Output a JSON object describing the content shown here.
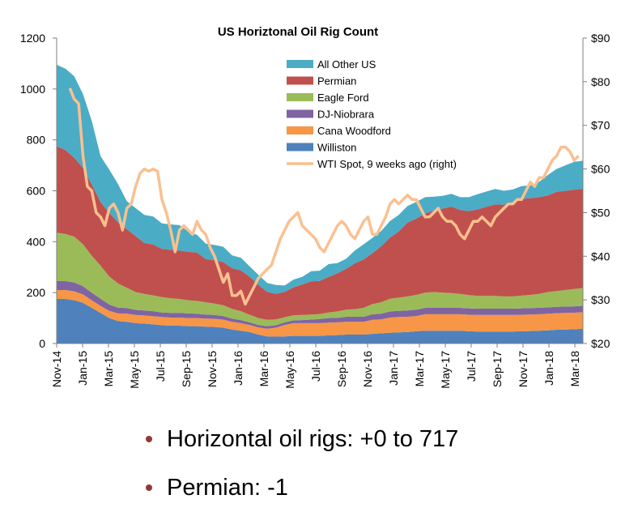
{
  "chart_data": {
    "type": "area",
    "title": "US Horiztonal Oil Rig Count",
    "x_labels": [
      "Nov-14",
      "Jan-15",
      "Mar-15",
      "May-15",
      "Jul-15",
      "Sep-15",
      "Nov-15",
      "Jan-16",
      "Mar-16",
      "May-16",
      "Jul-16",
      "Sep-16",
      "Nov-16",
      "Jan-17",
      "Mar-17",
      "May-17",
      "Jul-17",
      "Sep-17",
      "Nov-17",
      "Jan-18",
      "Mar-18"
    ],
    "y_left": {
      "min": 0,
      "max": 1200,
      "ticks": [
        0,
        200,
        400,
        600,
        800,
        1000,
        1200
      ]
    },
    "y_right": {
      "min": 20,
      "max": 90,
      "ticks": [
        "$20",
        "$30",
        "$40",
        "$50",
        "$60",
        "$70",
        "$80",
        "$90"
      ]
    },
    "stack_order": [
      "Williston",
      "Cana Woodford",
      "DJ-Niobrara",
      "Eagle Ford",
      "Permian",
      "All Other US"
    ],
    "series": [
      {
        "name": "All Other US",
        "color": "#4BACC6",
        "values": [
          320,
          320,
          320,
          290,
          250,
          180,
          170,
          150,
          110,
          110,
          110,
          110,
          100,
          100,
          100,
          80,
          70,
          60,
          60,
          60,
          50,
          50,
          40,
          40,
          35,
          35,
          25,
          30,
          30,
          40,
          40,
          50,
          40,
          40,
          50,
          60,
          60,
          60,
          65,
          65,
          65,
          65,
          65,
          55,
          50,
          50,
          50,
          55,
          60,
          60,
          60,
          55,
          50,
          50,
          50,
          60,
          80,
          90,
          100,
          110,
          110
        ]
      },
      {
        "name": "Permian",
        "color": "#C0504D",
        "values": [
          340,
          330,
          310,
          300,
          280,
          250,
          250,
          240,
          230,
          220,
          200,
          200,
          190,
          190,
          190,
          190,
          190,
          170,
          170,
          170,
          160,
          160,
          150,
          130,
          110,
          100,
          100,
          110,
          120,
          130,
          130,
          140,
          150,
          160,
          180,
          190,
          200,
          220,
          240,
          260,
          290,
          300,
          310,
          320,
          330,
          340,
          330,
          330,
          340,
          350,
          360,
          360,
          370,
          380,
          380,
          380,
          380,
          390,
          390,
          390,
          390
        ]
      },
      {
        "name": "Eagle Ford",
        "color": "#9BBB59",
        "values": [
          190,
          185,
          180,
          165,
          145,
          130,
          110,
          95,
          80,
          70,
          65,
          62,
          60,
          58,
          55,
          52,
          50,
          48,
          45,
          42,
          38,
          35,
          30,
          27,
          25,
          23,
          20,
          20,
          20,
          20,
          20,
          22,
          25,
          28,
          30,
          35,
          40,
          45,
          50,
          52,
          55,
          58,
          60,
          62,
          60,
          58,
          55,
          52,
          50,
          50,
          50,
          48,
          48,
          50,
          52,
          55,
          60,
          62,
          65,
          68,
          70
        ]
      },
      {
        "name": "DJ-Niobrara",
        "color": "#8064A2",
        "values": [
          35,
          35,
          35,
          32,
          30,
          28,
          25,
          23,
          22,
          20,
          20,
          20,
          18,
          18,
          18,
          18,
          17,
          16,
          15,
          14,
          13,
          12,
          10,
          10,
          10,
          10,
          10,
          11,
          12,
          14,
          16,
          18,
          18,
          20,
          20,
          20,
          22,
          22,
          24,
          24,
          25,
          25,
          25,
          25,
          25,
          25,
          25,
          25,
          25,
          25,
          25,
          25,
          25,
          25,
          25,
          25,
          25,
          25,
          25,
          25,
          25
        ]
      },
      {
        "name": "Cana Woodford",
        "color": "#F79646",
        "values": [
          35,
          35,
          35,
          33,
          30,
          28,
          28,
          30,
          32,
          32,
          32,
          32,
          32,
          32,
          32,
          32,
          32,
          32,
          32,
          32,
          30,
          30,
          28,
          28,
          30,
          35,
          45,
          50,
          50,
          50,
          50,
          50,
          50,
          50,
          50,
          50,
          55,
          55,
          60,
          60,
          60,
          60,
          65,
          65,
          65,
          65,
          65,
          65,
          65,
          65,
          65,
          65,
          65,
          65,
          65,
          65,
          65,
          65,
          65,
          65,
          65
        ]
      },
      {
        "name": "Williston",
        "color": "#4F81BD",
        "values": [
          175,
          175,
          170,
          160,
          140,
          120,
          100,
          88,
          85,
          80,
          78,
          75,
          72,
          70,
          70,
          68,
          68,
          66,
          65,
          62,
          55,
          50,
          45,
          35,
          28,
          27,
          28,
          30,
          30,
          30,
          30,
          32,
          33,
          35,
          35,
          35,
          38,
          40,
          42,
          44,
          45,
          48,
          50,
          50,
          50,
          50,
          50,
          48,
          47,
          47,
          47,
          47,
          47,
          48,
          49,
          50,
          52,
          54,
          55,
          56,
          58
        ]
      }
    ],
    "line_series": {
      "name": "WTI Spot, 9 weeks ago (right)",
      "color": "#FAC090",
      "points": [
        [
          3,
          78.5
        ],
        [
          4,
          76
        ],
        [
          5,
          75
        ],
        [
          6,
          63
        ],
        [
          7,
          56
        ],
        [
          8,
          55
        ],
        [
          9,
          50
        ],
        [
          10,
          49
        ],
        [
          11,
          47
        ],
        [
          12,
          51
        ],
        [
          13,
          52
        ],
        [
          14,
          50
        ],
        [
          15,
          46
        ],
        [
          16,
          51
        ],
        [
          17,
          52
        ],
        [
          18,
          56
        ],
        [
          19,
          59
        ],
        [
          20,
          60
        ],
        [
          21,
          59.5
        ],
        [
          22,
          60
        ],
        [
          23,
          59.5
        ],
        [
          24,
          53
        ],
        [
          25,
          50
        ],
        [
          26,
          46
        ],
        [
          27,
          41
        ],
        [
          28,
          46
        ],
        [
          29,
          47
        ],
        [
          30,
          46
        ],
        [
          31,
          45
        ],
        [
          32,
          48
        ],
        [
          33,
          46
        ],
        [
          34,
          45
        ],
        [
          35,
          42
        ],
        [
          36,
          40
        ],
        [
          37,
          37
        ],
        [
          38,
          34
        ],
        [
          39,
          36
        ],
        [
          40,
          31
        ],
        [
          41,
          31
        ],
        [
          42,
          32
        ],
        [
          43,
          29
        ],
        [
          44,
          31
        ],
        [
          45,
          33
        ],
        [
          46,
          35
        ],
        [
          47,
          36
        ],
        [
          48,
          37
        ],
        [
          49,
          38
        ],
        [
          50,
          41
        ],
        [
          51,
          44
        ],
        [
          52,
          46
        ],
        [
          53,
          48
        ],
        [
          54,
          49
        ],
        [
          55,
          50
        ],
        [
          56,
          47
        ],
        [
          57,
          46
        ],
        [
          58,
          45
        ],
        [
          59,
          44
        ],
        [
          60,
          42
        ],
        [
          61,
          41
        ],
        [
          62,
          43
        ],
        [
          63,
          45
        ],
        [
          64,
          47
        ],
        [
          65,
          48
        ],
        [
          66,
          47
        ],
        [
          67,
          45
        ],
        [
          68,
          44
        ],
        [
          69,
          46
        ],
        [
          70,
          48
        ],
        [
          71,
          49
        ],
        [
          72,
          45
        ],
        [
          73,
          45
        ],
        [
          74,
          47
        ],
        [
          75,
          49
        ],
        [
          76,
          52
        ],
        [
          77,
          53
        ],
        [
          78,
          52
        ],
        [
          79,
          53
        ],
        [
          80,
          54
        ],
        [
          81,
          53
        ],
        [
          82,
          53
        ],
        [
          83,
          51
        ],
        [
          84,
          49
        ],
        [
          85,
          49
        ],
        [
          86,
          50
        ],
        [
          87,
          51
        ],
        [
          88,
          49
        ],
        [
          89,
          48
        ],
        [
          90,
          48
        ],
        [
          91,
          47
        ],
        [
          92,
          45
        ],
        [
          93,
          44
        ],
        [
          94,
          46
        ],
        [
          95,
          48
        ],
        [
          96,
          48
        ],
        [
          97,
          49
        ],
        [
          98,
          48
        ],
        [
          99,
          47
        ],
        [
          100,
          49
        ],
        [
          101,
          50
        ],
        [
          102,
          51
        ],
        [
          103,
          52
        ],
        [
          104,
          52
        ],
        [
          105,
          53
        ],
        [
          106,
          53
        ],
        [
          107,
          55
        ],
        [
          108,
          57
        ],
        [
          109,
          56
        ],
        [
          110,
          58
        ],
        [
          111,
          58
        ],
        [
          112,
          60
        ],
        [
          113,
          62
        ],
        [
          114,
          63
        ],
        [
          115,
          65
        ],
        [
          116,
          65
        ],
        [
          117,
          64
        ],
        [
          118,
          62
        ],
        [
          119,
          63
        ]
      ],
      "x_max": 120
    },
    "legend_position": "top-center"
  },
  "bullets": [
    {
      "text": "Horizontal oil rigs: +0 to 717",
      "color": "#953735"
    },
    {
      "text": "Permian: -1",
      "color": "#953735"
    }
  ]
}
